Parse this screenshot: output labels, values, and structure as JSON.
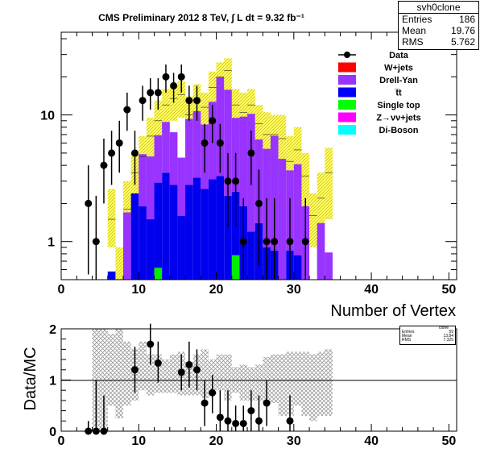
{
  "chart_data": [
    {
      "type": "bar",
      "title": "CMS Preliminary 2012 8 TeV, ∫ L dt = 9.32 fb⁻¹",
      "xlabel": "Number of Vertex",
      "ylabel": "",
      "xlim": [
        0,
        51
      ],
      "ylim": [
        0.5,
        45
      ],
      "log_y": true,
      "x_ticks": [
        "0",
        "10",
        "20",
        "30",
        "40",
        "50"
      ],
      "y_ticks": [
        "1",
        "10"
      ],
      "legend_position": "top-right",
      "legend": [
        {
          "label": "Data",
          "style": "marker",
          "color": "#000000"
        },
        {
          "label": "W+jets",
          "style": "box",
          "color": "#ff0000"
        },
        {
          "label": "Drell-Yan",
          "style": "box",
          "color": "#9933ff"
        },
        {
          "label": "t̅t",
          "style": "box",
          "color": "#0000ff"
        },
        {
          "label": "Single top",
          "style": "box",
          "color": "#00ff00"
        },
        {
          "label": "Z→νν+jets",
          "style": "box",
          "color": "#ff00ff"
        },
        {
          "label": "Di-Boson",
          "style": "box",
          "color": "#00ffff"
        }
      ],
      "bin_width": 1,
      "stack": [
        {
          "name": "Single top",
          "color": "#00ee00",
          "bins": [
            [
              12,
              0.62
            ],
            [
              22,
              0.78
            ]
          ]
        },
        {
          "name": "t̅t",
          "color": "#0000ee",
          "bins": [
            [
              6,
              0.58
            ],
            [
              9,
              2.4
            ],
            [
              10,
              1.9
            ],
            [
              11,
              1.5
            ],
            [
              12,
              2.3
            ],
            [
              13,
              3.5
            ],
            [
              14,
              2.8
            ],
            [
              15,
              1.6
            ],
            [
              16,
              2.8
            ],
            [
              17,
              3.2
            ],
            [
              18,
              2.6
            ],
            [
              19,
              3.1
            ],
            [
              20,
              3.3
            ],
            [
              21,
              2.3
            ],
            [
              22,
              1.7
            ],
            [
              23,
              1.9
            ],
            [
              24,
              1.2
            ],
            [
              25,
              1.4
            ],
            [
              26,
              0.9
            ],
            [
              27,
              0.85
            ],
            [
              29,
              0.85
            ],
            [
              30,
              0.78
            ]
          ]
        },
        {
          "name": "Drell-Yan",
          "color": "#9933ff",
          "bins": [
            [
              8,
              1.7
            ],
            [
              10,
              3.0
            ],
            [
              11,
              3.2
            ],
            [
              12,
              4.0
            ],
            [
              13,
              5.3
            ],
            [
              14,
              4.5
            ],
            [
              15,
              3.0
            ],
            [
              16,
              6.5
            ],
            [
              17,
              7.5
            ],
            [
              18,
              5.8
            ],
            [
              19,
              9.6
            ],
            [
              20,
              16.5
            ],
            [
              21,
              13.5
            ],
            [
              22,
              7.0
            ],
            [
              23,
              7.8
            ],
            [
              24,
              9.0
            ],
            [
              25,
              5.0
            ],
            [
              26,
              4.5
            ],
            [
              27,
              6.0
            ],
            [
              28,
              4.5
            ],
            [
              29,
              2.8
            ],
            [
              30,
              3.3
            ],
            [
              31,
              1.9
            ],
            [
              33,
              1.4
            ],
            [
              34,
              0.82
            ]
          ]
        }
      ],
      "mc_total": [
        [
          6,
          1.5
        ],
        [
          7,
          0.5
        ],
        [
          8,
          1.8
        ],
        [
          9,
          3.5
        ],
        [
          10,
          4.7
        ],
        [
          11,
          6.8
        ],
        [
          12,
          9.0
        ],
        [
          13,
          12.0
        ],
        [
          14,
          13.5
        ],
        [
          15,
          14.5
        ],
        [
          16,
          10.0
        ],
        [
          17,
          13.0
        ],
        [
          18,
          11.5
        ],
        [
          19,
          16.5
        ],
        [
          20,
          20.0
        ],
        [
          21,
          22.5
        ],
        [
          22,
          12.0
        ],
        [
          23,
          10.5
        ],
        [
          24,
          12.0
        ],
        [
          25,
          8.5
        ],
        [
          26,
          7.0
        ],
        [
          27,
          7.0
        ],
        [
          28,
          6.5
        ],
        [
          29,
          4.3
        ],
        [
          30,
          5.3
        ],
        [
          31,
          3.3
        ],
        [
          32,
          1.6
        ],
        [
          33,
          2.2
        ],
        [
          34,
          3.5
        ]
      ],
      "mc_uncertainty": [
        [
          6,
          0.9,
          2.6
        ],
        [
          7,
          0.5,
          0.9
        ],
        [
          8,
          1.0,
          3.0
        ],
        [
          9,
          1.8,
          5.0
        ],
        [
          10,
          2.5,
          6.8
        ],
        [
          11,
          4.0,
          9.5
        ],
        [
          12,
          5.5,
          13.0
        ],
        [
          13,
          8.0,
          16.0
        ],
        [
          14,
          9.0,
          17.0
        ],
        [
          15,
          9.5,
          18.5
        ],
        [
          16,
          6.5,
          14.0
        ],
        [
          17,
          8.0,
          17.5
        ],
        [
          18,
          7.0,
          15.0
        ],
        [
          19,
          11.0,
          22.0
        ],
        [
          20,
          13.0,
          26.0
        ],
        [
          21,
          14.5,
          28.0
        ],
        [
          22,
          7.0,
          16.0
        ],
        [
          23,
          6.0,
          15.0
        ],
        [
          24,
          7.5,
          16.0
        ],
        [
          25,
          4.5,
          12.0
        ],
        [
          26,
          4.0,
          10.5
        ],
        [
          27,
          4.0,
          10.0
        ],
        [
          28,
          3.5,
          10.0
        ],
        [
          29,
          2.0,
          6.8
        ],
        [
          30,
          2.4,
          8.0
        ],
        [
          31,
          1.5,
          5.0
        ],
        [
          32,
          0.9,
          2.4
        ],
        [
          33,
          1.0,
          3.5
        ],
        [
          34,
          1.5,
          5.5
        ]
      ],
      "data_points": [
        [
          3.5,
          2.0,
          4.0,
          0.55
        ],
        [
          4.5,
          1.0,
          2.3,
          0.5
        ],
        [
          5.5,
          4.0,
          6.5,
          2.0
        ],
        [
          6.5,
          5.0,
          7.5,
          2.8
        ],
        [
          7.5,
          6.0,
          9.0,
          3.5
        ],
        [
          8.5,
          11.0,
          15.0,
          7.5
        ],
        [
          9.5,
          5.0,
          7.5,
          2.8
        ],
        [
          10.5,
          13.0,
          17.0,
          9.0
        ],
        [
          11.5,
          15.0,
          19.5,
          11.0
        ],
        [
          12.5,
          15.0,
          19.5,
          11.0
        ],
        [
          13.5,
          20.0,
          25.0,
          15.0
        ],
        [
          14.5,
          17.0,
          21.5,
          12.5
        ],
        [
          15.5,
          20.0,
          25.0,
          15.0
        ],
        [
          16.5,
          13.0,
          17.0,
          9.0
        ],
        [
          17.5,
          13.0,
          17.0,
          9.0
        ],
        [
          18.5,
          6.0,
          8.5,
          3.5
        ],
        [
          19.5,
          9.0,
          12.0,
          6.0
        ],
        [
          20.5,
          6.0,
          8.5,
          3.5
        ],
        [
          21.5,
          3.0,
          5.0,
          1.3
        ],
        [
          22.5,
          3.0,
          5.0,
          1.3
        ],
        [
          23.5,
          1.0,
          2.2,
          0.5
        ],
        [
          24.5,
          5.0,
          7.5,
          2.8
        ],
        [
          25.5,
          2.0,
          3.7,
          0.65
        ],
        [
          26.5,
          1.0,
          2.2,
          0.5
        ],
        [
          27.5,
          1.0,
          2.2,
          0.5
        ],
        [
          29.5,
          1.0,
          2.2,
          0.5
        ],
        [
          31.5,
          1.0,
          2.2,
          0.5
        ]
      ],
      "stats_box": {
        "title": "svh0clone",
        "rows": [
          {
            "label": "Entries",
            "value": "186"
          },
          {
            "label": "Mean",
            "value": "19.76"
          },
          {
            "label": "RMS",
            "value": "5.762"
          }
        ]
      }
    },
    {
      "type": "scatter",
      "title": "",
      "xlabel": "",
      "ylabel": "Data/MC",
      "xlim": [
        0,
        51
      ],
      "ylim": [
        0,
        2
      ],
      "x_ticks": [
        "0",
        "10",
        "20",
        "30",
        "40",
        "50"
      ],
      "y_ticks": [
        "0",
        "1",
        "2"
      ],
      "reference_line": 1,
      "ratio_band": [
        [
          4,
          0,
          2
        ],
        [
          5,
          0,
          2
        ],
        [
          6,
          0.5,
          1.9
        ],
        [
          7,
          0.25,
          2.0
        ],
        [
          8,
          0.5,
          1.75
        ],
        [
          9,
          0.6,
          1.6
        ],
        [
          10,
          0.8,
          1.75
        ],
        [
          11,
          0.7,
          1.5
        ],
        [
          12,
          0.75,
          1.5
        ],
        [
          13,
          0.75,
          1.4
        ],
        [
          14,
          0.75,
          1.5
        ],
        [
          15,
          0.7,
          1.55
        ],
        [
          16,
          0.7,
          1.35
        ],
        [
          17,
          0.7,
          1.5
        ],
        [
          18,
          0.65,
          1.6
        ],
        [
          19,
          0.7,
          1.4
        ],
        [
          20,
          0.8,
          1.5
        ],
        [
          21,
          0.6,
          1.5
        ],
        [
          22,
          0.75,
          1.25
        ],
        [
          23,
          0.6,
          1.3
        ],
        [
          24,
          0.6,
          1.25
        ],
        [
          25,
          0.6,
          1.3
        ],
        [
          26,
          0.55,
          1.45
        ],
        [
          27,
          0.55,
          1.5
        ],
        [
          28,
          0.3,
          1.5
        ],
        [
          29,
          0.3,
          1.55
        ],
        [
          30,
          0.5,
          1.55
        ],
        [
          31,
          0.3,
          1.55
        ],
        [
          32,
          0.2,
          1.5
        ],
        [
          33,
          0.3,
          1.55
        ],
        [
          34,
          0.3,
          1.6
        ]
      ],
      "points": [
        [
          3.5,
          0,
          0.2,
          0
        ],
        [
          4.5,
          0,
          1.0,
          0
        ],
        [
          5.5,
          0,
          0.7,
          0
        ],
        [
          9.5,
          1.2,
          1.65,
          0.75
        ],
        [
          11.5,
          1.7,
          2.1,
          1.3
        ],
        [
          12.5,
          1.33,
          1.75,
          0.95
        ],
        [
          15.5,
          1.15,
          1.5,
          0.8
        ],
        [
          16.5,
          1.3,
          1.75,
          0.85
        ],
        [
          17.5,
          1.2,
          1.6,
          0.8
        ],
        [
          18.5,
          0.55,
          1.0,
          0.1
        ],
        [
          19.5,
          0.75,
          1.1,
          0.35
        ],
        [
          20.5,
          0.27,
          0.8,
          0.0
        ],
        [
          21.5,
          0.2,
          0.8,
          0.0
        ],
        [
          22.5,
          0.15,
          0.5,
          0.0
        ],
        [
          23.5,
          0.15,
          0.5,
          0.0
        ],
        [
          24.5,
          0.4,
          0.8,
          0.0
        ],
        [
          25.5,
          0.2,
          0.7,
          0.0
        ],
        [
          26.5,
          0.55,
          1.0,
          0.1
        ],
        [
          29.5,
          0.2,
          0.7,
          0.0
        ]
      ],
      "stats_box": {
        "title": "clone",
        "rows": [
          {
            "label": "Entries",
            "value": "59"
          },
          {
            "label": "Mean",
            "value": "13.84"
          },
          {
            "label": "RMS",
            "value": "7.325"
          }
        ]
      }
    }
  ]
}
